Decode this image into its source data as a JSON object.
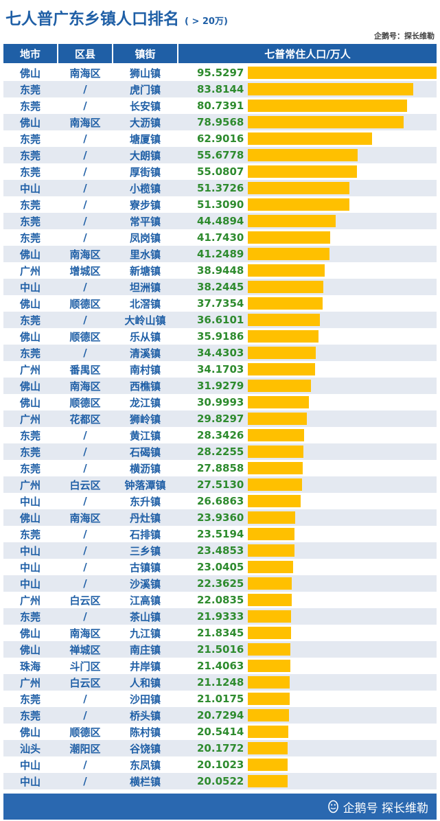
{
  "title": "七人普广东乡镇人口排名",
  "subtitle": "( > 20万)",
  "credit": "企鹅号：探长维勒",
  "footer": "企鹅号 探长维勒",
  "colors": {
    "header": "#1f5fa6",
    "bar": "#ffc000",
    "value": "#2e8b2e",
    "row_alt": "#e4e9f1"
  },
  "chart_data": {
    "type": "bar",
    "columns": [
      "地市",
      "区县",
      "镇街",
      "七普常住人口/万人"
    ],
    "rows": [
      {
        "city": "佛山",
        "district": "南海区",
        "town": "狮山镇",
        "value": "95.5297"
      },
      {
        "city": "东莞",
        "district": "/",
        "town": "虎门镇",
        "value": "83.8144"
      },
      {
        "city": "东莞",
        "district": "/",
        "town": "长安镇",
        "value": "80.7391"
      },
      {
        "city": "佛山",
        "district": "南海区",
        "town": "大沥镇",
        "value": "78.9568"
      },
      {
        "city": "东莞",
        "district": "/",
        "town": "塘厦镇",
        "value": "62.9016"
      },
      {
        "city": "东莞",
        "district": "/",
        "town": "大朗镇",
        "value": "55.6778"
      },
      {
        "city": "东莞",
        "district": "/",
        "town": "厚街镇",
        "value": "55.0807"
      },
      {
        "city": "中山",
        "district": "/",
        "town": "小榄镇",
        "value": "51.3726"
      },
      {
        "city": "东莞",
        "district": "/",
        "town": "寮步镇",
        "value": "51.3090"
      },
      {
        "city": "东莞",
        "district": "/",
        "town": "常平镇",
        "value": "44.4894"
      },
      {
        "city": "东莞",
        "district": "/",
        "town": "凤岗镇",
        "value": "41.7430"
      },
      {
        "city": "佛山",
        "district": "南海区",
        "town": "里水镇",
        "value": "41.2489"
      },
      {
        "city": "广州",
        "district": "增城区",
        "town": "新塘镇",
        "value": "38.9448"
      },
      {
        "city": "中山",
        "district": "/",
        "town": "坦洲镇",
        "value": "38.2445"
      },
      {
        "city": "佛山",
        "district": "顺德区",
        "town": "北滘镇",
        "value": "37.7354"
      },
      {
        "city": "东莞",
        "district": "/",
        "town": "大岭山镇",
        "value": "36.6101"
      },
      {
        "city": "佛山",
        "district": "顺德区",
        "town": "乐从镇",
        "value": "35.9186"
      },
      {
        "city": "东莞",
        "district": "/",
        "town": "清溪镇",
        "value": "34.4303"
      },
      {
        "city": "广州",
        "district": "番禺区",
        "town": "南村镇",
        "value": "34.1703"
      },
      {
        "city": "佛山",
        "district": "南海区",
        "town": "西樵镇",
        "value": "31.9279"
      },
      {
        "city": "佛山",
        "district": "顺德区",
        "town": "龙江镇",
        "value": "30.9993"
      },
      {
        "city": "广州",
        "district": "花都区",
        "town": "狮岭镇",
        "value": "29.8297"
      },
      {
        "city": "东莞",
        "district": "/",
        "town": "黄江镇",
        "value": "28.3426"
      },
      {
        "city": "东莞",
        "district": "/",
        "town": "石碣镇",
        "value": "28.2255"
      },
      {
        "city": "东莞",
        "district": "/",
        "town": "横沥镇",
        "value": "27.8858"
      },
      {
        "city": "广州",
        "district": "白云区",
        "town": "钟落潭镇",
        "value": "27.5130"
      },
      {
        "city": "中山",
        "district": "/",
        "town": "东升镇",
        "value": "26.6863"
      },
      {
        "city": "佛山",
        "district": "南海区",
        "town": "丹灶镇",
        "value": "23.9360"
      },
      {
        "city": "东莞",
        "district": "/",
        "town": "石排镇",
        "value": "23.5194"
      },
      {
        "city": "中山",
        "district": "/",
        "town": "三乡镇",
        "value": "23.4853"
      },
      {
        "city": "中山",
        "district": "/",
        "town": "古镇镇",
        "value": "23.0405"
      },
      {
        "city": "中山",
        "district": "/",
        "town": "沙溪镇",
        "value": "22.3625"
      },
      {
        "city": "广州",
        "district": "白云区",
        "town": "江高镇",
        "value": "22.0835"
      },
      {
        "city": "东莞",
        "district": "/",
        "town": "茶山镇",
        "value": "21.9333"
      },
      {
        "city": "佛山",
        "district": "南海区",
        "town": "九江镇",
        "value": "21.8345"
      },
      {
        "city": "佛山",
        "district": "禅城区",
        "town": "南庄镇",
        "value": "21.5016"
      },
      {
        "city": "珠海",
        "district": "斗门区",
        "town": "井岸镇",
        "value": "21.4063"
      },
      {
        "city": "广州",
        "district": "白云区",
        "town": "人和镇",
        "value": "21.1248"
      },
      {
        "city": "东莞",
        "district": "/",
        "town": "沙田镇",
        "value": "21.0175"
      },
      {
        "city": "东莞",
        "district": "/",
        "town": "桥头镇",
        "value": "20.7294"
      },
      {
        "city": "佛山",
        "district": "顺德区",
        "town": "陈村镇",
        "value": "20.5414"
      },
      {
        "city": "汕头",
        "district": "潮阳区",
        "town": "谷饶镇",
        "value": "20.1772"
      },
      {
        "city": "中山",
        "district": "/",
        "town": "东凤镇",
        "value": "20.1023"
      },
      {
        "city": "中山",
        "district": "/",
        "town": "横栏镇",
        "value": "20.0522"
      }
    ]
  }
}
